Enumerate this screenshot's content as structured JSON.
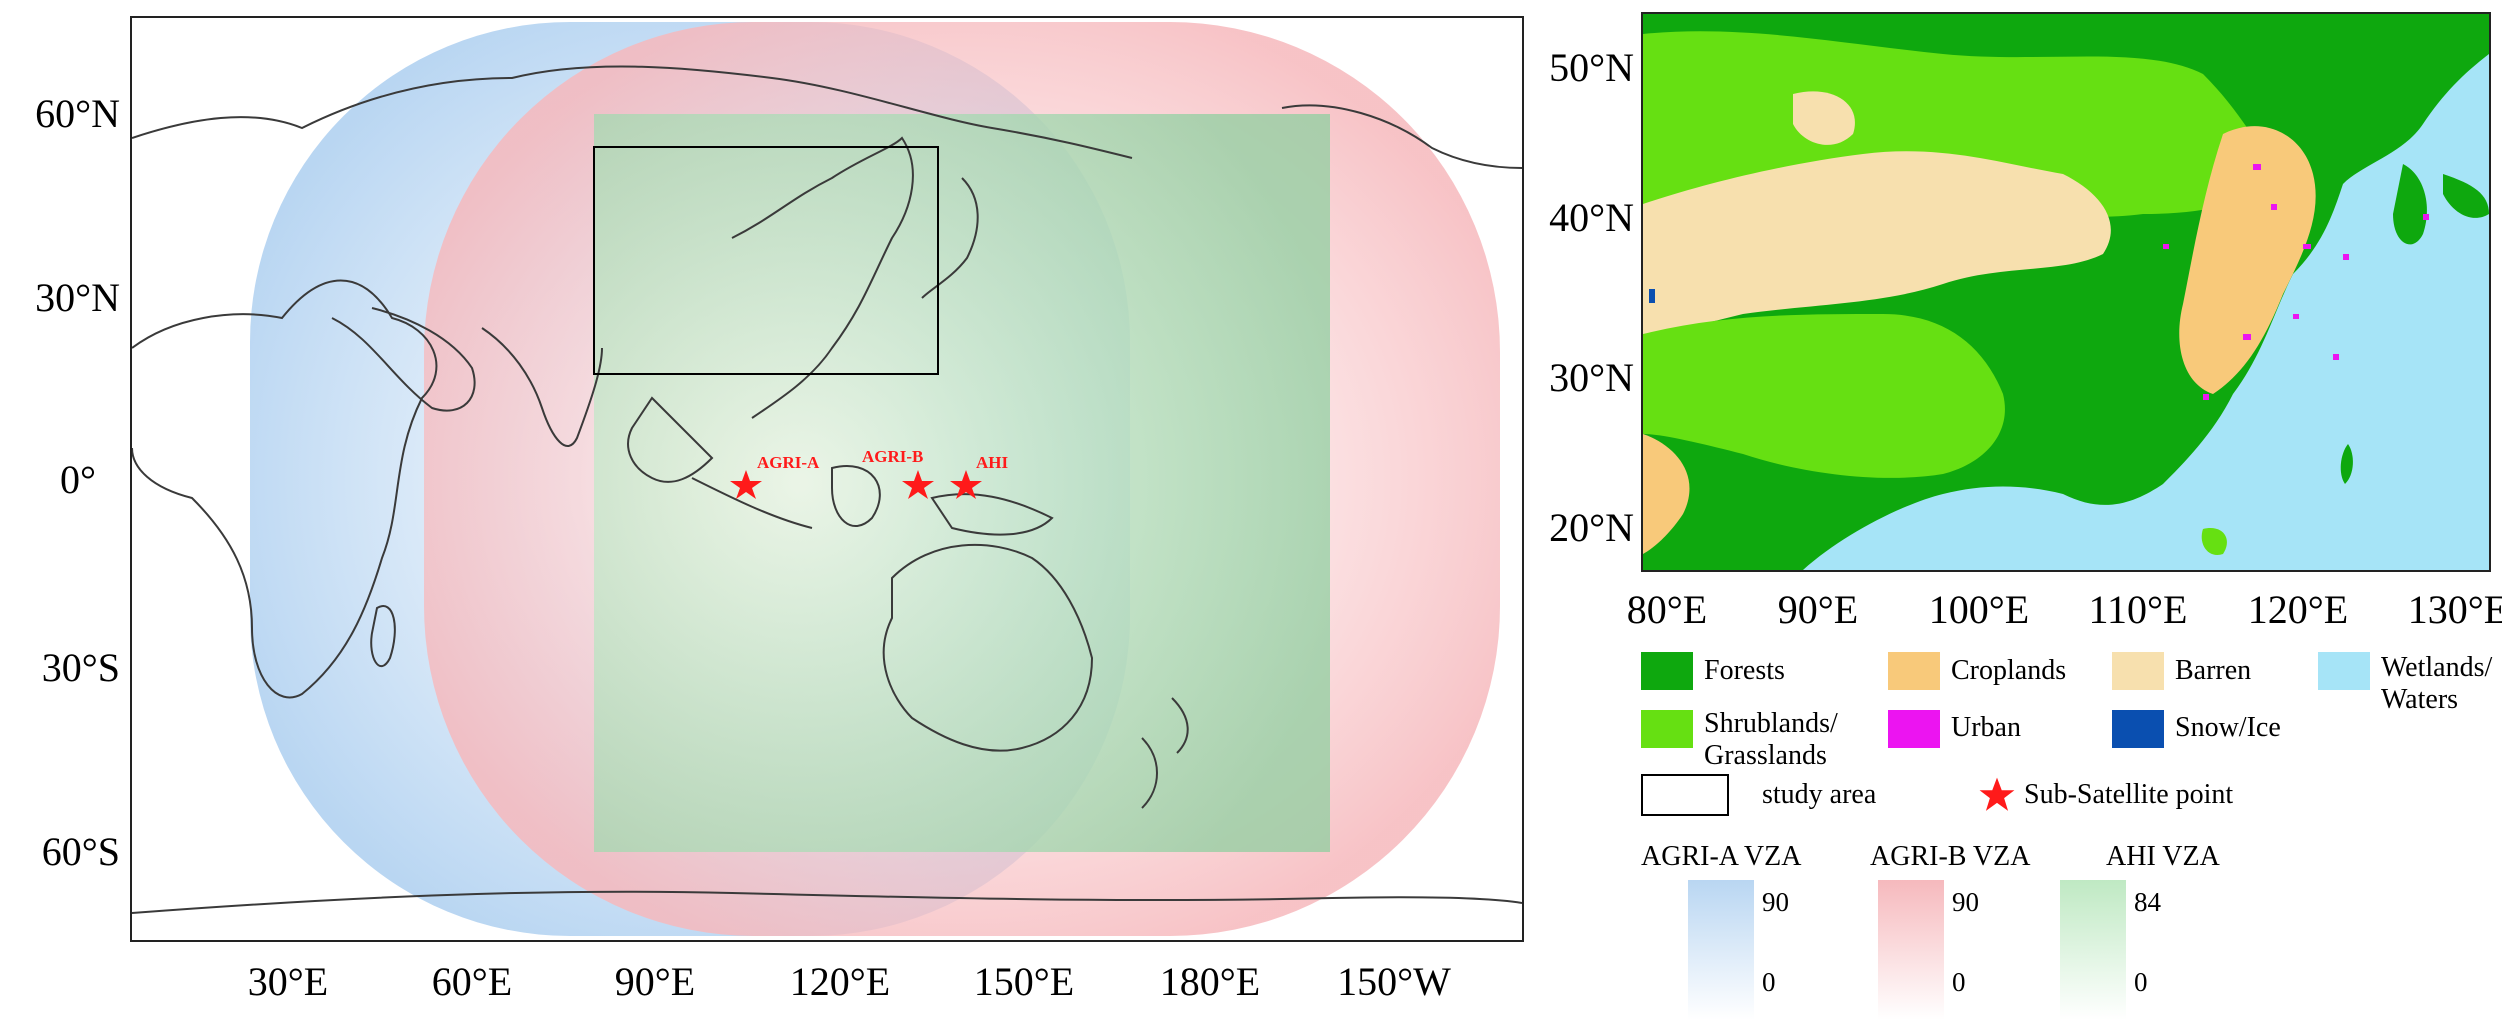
{
  "left_map": {
    "x_ticks": [
      "30°E",
      "60°E",
      "90°E",
      "120°E",
      "150°E",
      "180°E",
      "150°W"
    ],
    "y_ticks": [
      "60°N",
      "30°N",
      "0°",
      "30°S",
      "60°S"
    ],
    "satellites": [
      {
        "label": "AGRI-A",
        "lon": 104.5,
        "lat": 0
      },
      {
        "label": "AGRI-B",
        "lon": 133,
        "lat": 0
      },
      {
        "label": "AHI",
        "lon": 140.7,
        "lat": 0
      }
    ],
    "study_area": {
      "lon_min": 80,
      "lon_max": 135,
      "lat_min": 17,
      "lat_max": 54
    },
    "colors": {
      "agri_a": "#b9d6f2",
      "agri_b": "#f6b9bd",
      "ahi": "#a6dcae",
      "star": "#ff1a1a",
      "sat_label": "#ff1a1a"
    }
  },
  "right_map": {
    "x_ticks": [
      "80°E",
      "90°E",
      "100°E",
      "110°E",
      "120°E",
      "130°E"
    ],
    "y_ticks": [
      "50°N",
      "40°N",
      "30°N",
      "20°N"
    ]
  },
  "legend": {
    "classes": [
      {
        "label": "Forests",
        "color": "#0ea80e"
      },
      {
        "label": "Croplands",
        "color": "#f8c97a"
      },
      {
        "label": "Barren",
        "color": "#f7e0ae"
      },
      {
        "label": "Wetlands/\nWaters",
        "color": "#a6e4f7"
      },
      {
        "label": "Shrublands/\nGrasslands",
        "color": "#66e012"
      },
      {
        "label": "Urban",
        "color": "#ec14f1"
      },
      {
        "label": "Snow/Ice",
        "color": "#0a4fb0"
      }
    ],
    "study_area_label": "study area",
    "sub_satellite_label": "Sub-Satellite point"
  },
  "colorbars": [
    {
      "title": "AGRI-A VZA",
      "max": "90",
      "min": "0",
      "color": "#b9d6f2"
    },
    {
      "title": "AGRI-B VZA",
      "max": "90",
      "min": "0",
      "color": "#f6b9bd"
    },
    {
      "title": "AHI VZA",
      "max": "84",
      "min": "0",
      "color": "#bfe9c3"
    }
  ]
}
